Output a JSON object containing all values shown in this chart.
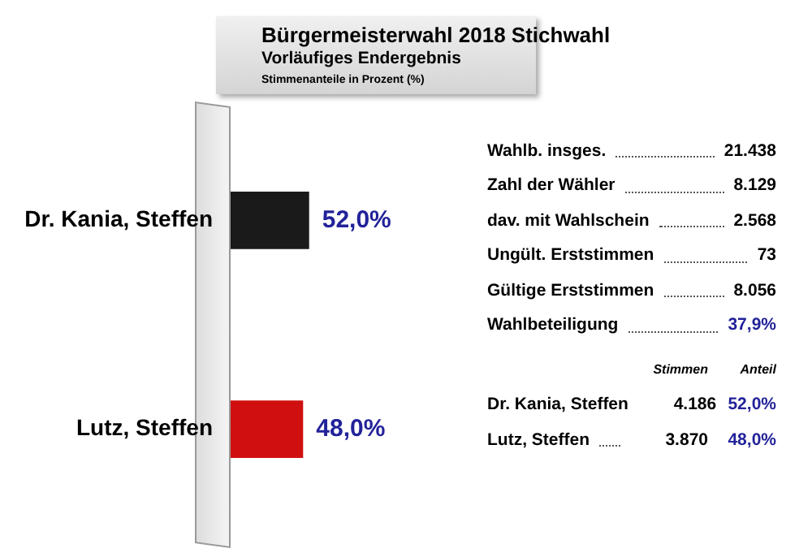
{
  "chart_data": {
    "type": "bar",
    "orientation": "horizontal",
    "title": "Bürgermeisterwahl 2018 Stichwahl",
    "subtitle": "Vorläufiges Endergebnis",
    "xlabel": "Stimmenanteile in Prozent (%)",
    "categories": [
      "Dr. Kania, Steffen",
      "Lutz, Steffen"
    ],
    "values": [
      52.0,
      48.0
    ],
    "colors": [
      "#1a1a1a",
      "#d01010"
    ],
    "value_labels": [
      "52,0%",
      "48,0%"
    ],
    "tick_labels": "y",
    "legend": false,
    "annotations": [
      "Wahlb. insges.",
      "21.438",
      "Zahl der Wähler",
      "8.129",
      "dav. mit Wahlschein",
      "2.568",
      "Ungült. Erststimmen",
      "73",
      "Gültige Erststimmen",
      "8.056",
      "Wahlbeteiligung",
      "37,9%",
      "Stimmen",
      "Anteil",
      "Dr. Kania, Steffen",
      "4.186",
      "52,0%",
      "Lutz, Steffen",
      "3.870",
      "48,0%"
    ]
  }
}
